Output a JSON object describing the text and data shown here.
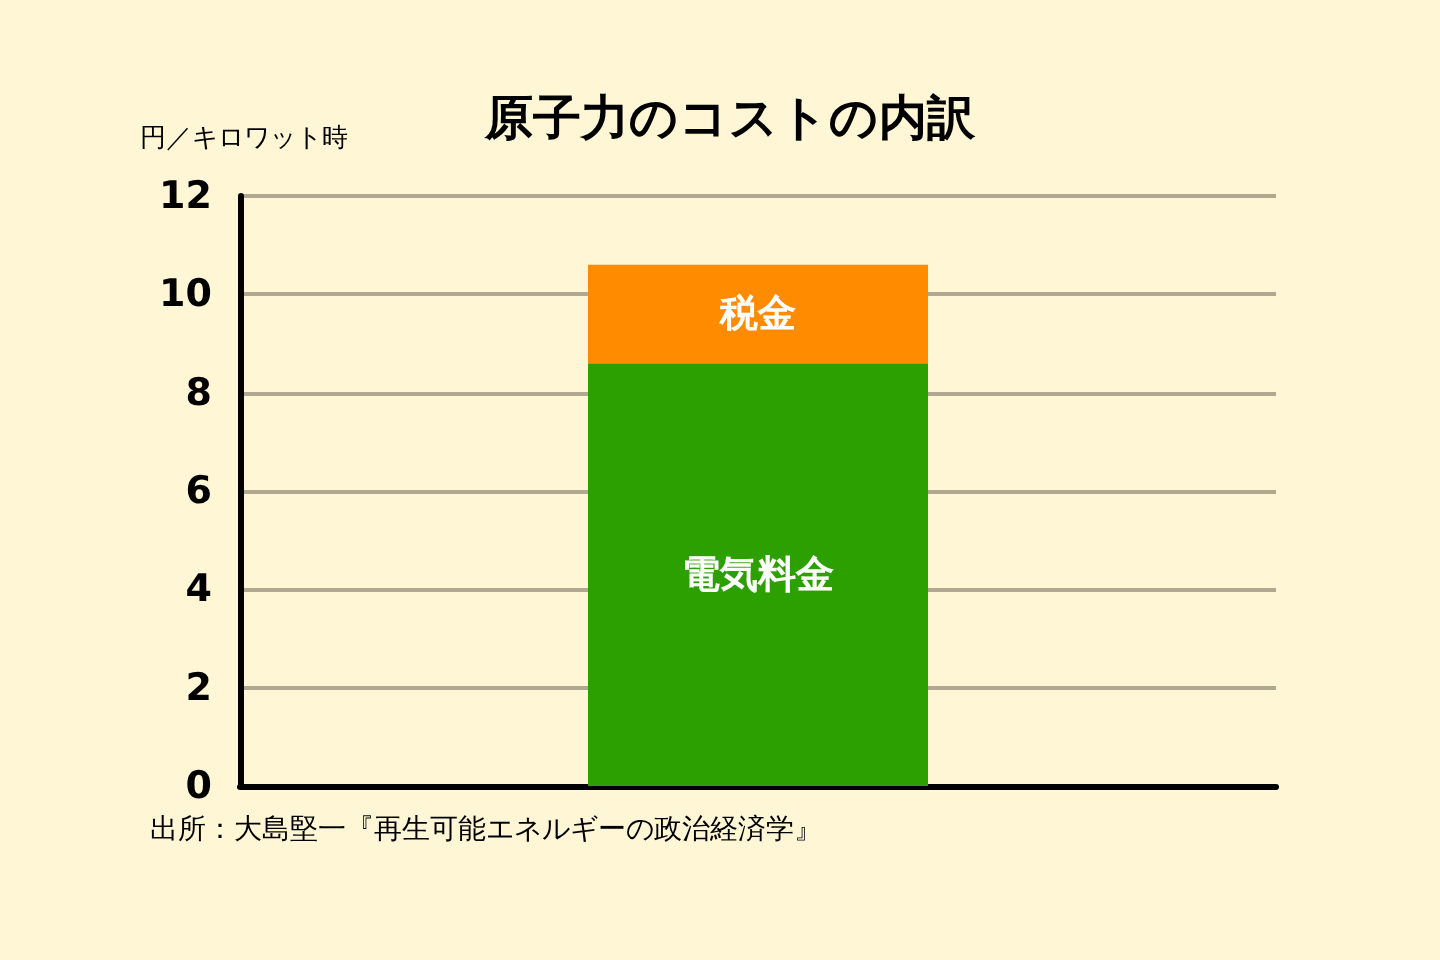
{
  "chart_data": {
    "type": "bar",
    "title": "原子力のコストの内訳",
    "ylabel": "円／キロワット時",
    "annotations": [
      "出所：大島堅一『再生可能エネルギーの政治経済学』"
    ],
    "categories": [
      null
    ],
    "stacked": true,
    "series": [
      {
        "name": "電気料金",
        "color": "#2ca000",
        "values": [
          8.6
        ]
      },
      {
        "name": "税金",
        "color": "#ff8c00",
        "values": [
          2.0
        ]
      }
    ],
    "ylim": [
      0,
      12
    ],
    "yticks": [
      0,
      2,
      4,
      6,
      8,
      10,
      12
    ],
    "grid": "y",
    "legend": false
  }
}
